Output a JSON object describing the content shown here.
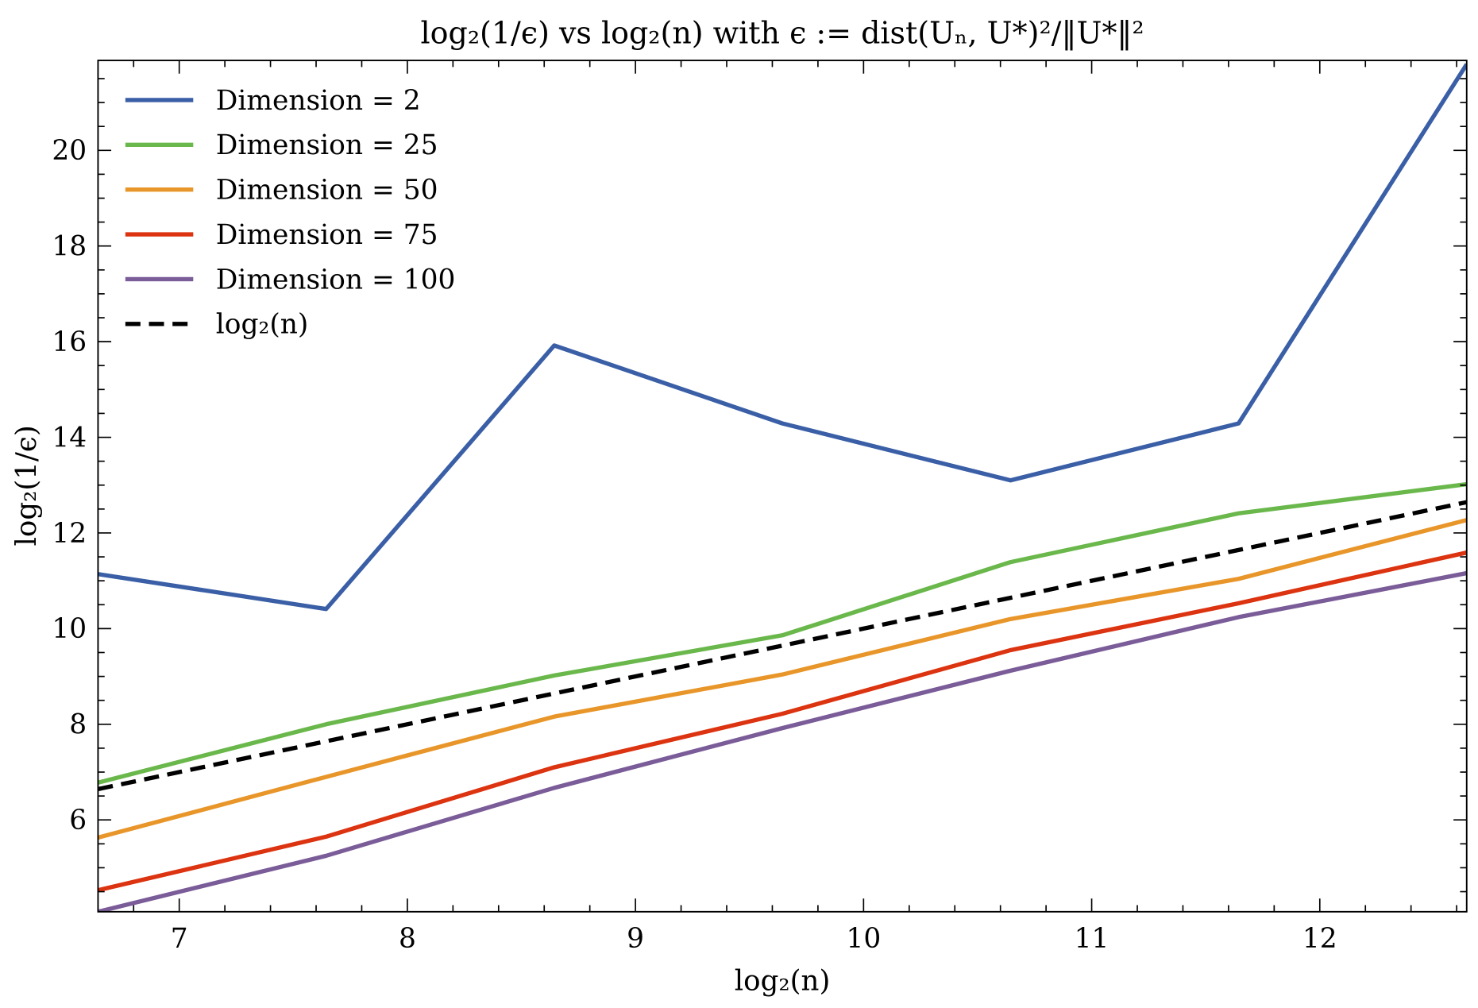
{
  "chart_data": {
    "type": "line",
    "title": "log₂(1/ϵ) vs log₂(n) with ϵ := dist(Uₙ, U*)²/‖U*‖²",
    "xlabel": "log₂(n)",
    "ylabel": "log₂(1/ϵ)",
    "xlim": [
      6.644,
      12.644
    ],
    "ylim": [
      4.08,
      21.88
    ],
    "xticks": [
      7,
      8,
      9,
      10,
      11,
      12
    ],
    "yticks": [
      6,
      8,
      10,
      12,
      14,
      16,
      18,
      20
    ],
    "grid": false,
    "legend_placement": "top-left",
    "x": [
      6.644,
      7.644,
      8.644,
      9.644,
      10.644,
      11.644,
      12.644
    ],
    "series": [
      {
        "name": "Dimension = 2",
        "color": "#3a5fa6",
        "dash": false,
        "values": [
          11.14,
          10.41,
          15.92,
          14.29,
          13.1,
          14.29,
          21.8
        ]
      },
      {
        "name": "Dimension = 25",
        "color": "#6ab84b",
        "dash": false,
        "values": [
          6.78,
          8.0,
          9.02,
          9.86,
          11.39,
          12.41,
          13.02
        ]
      },
      {
        "name": "Dimension = 50",
        "color": "#e8962a",
        "dash": false,
        "values": [
          5.63,
          6.9,
          8.16,
          9.04,
          10.2,
          11.04,
          12.27
        ]
      },
      {
        "name": "Dimension = 75",
        "color": "#dc3310",
        "dash": false,
        "values": [
          4.53,
          5.65,
          7.1,
          8.22,
          9.55,
          10.53,
          11.59
        ]
      },
      {
        "name": "Dimension = 100",
        "color": "#7a5c98",
        "dash": false,
        "values": [
          4.08,
          5.25,
          6.67,
          7.92,
          9.12,
          10.24,
          11.16
        ]
      },
      {
        "name": "log₂(n)",
        "color": "#000000",
        "dash": true,
        "values": [
          6.644,
          7.644,
          8.644,
          9.644,
          10.644,
          11.644,
          12.644
        ]
      }
    ]
  }
}
